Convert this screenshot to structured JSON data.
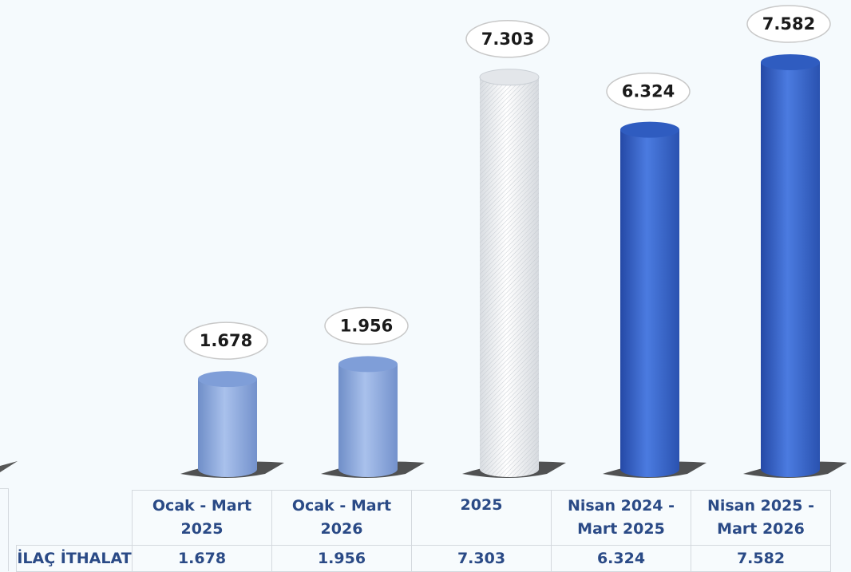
{
  "chart_data": {
    "type": "bar",
    "categories": [
      "Ocak - Mart 2025",
      "Ocak - Mart 2026",
      "2025",
      "Nisan 2024 - Mart 2025",
      "Nisan 2025 - Mart 2026"
    ],
    "category_lines": [
      [
        "Ocak - Mart",
        "2025"
      ],
      [
        "Ocak - Mart",
        "2026"
      ],
      [
        "2025",
        ""
      ],
      [
        "Nisan 2024 -",
        "Mart 2025"
      ],
      [
        "Nisan 2025 -",
        "Mart 2026"
      ]
    ],
    "series": [
      {
        "name": "İLAÇ İTHALAT",
        "values": [
          1.678,
          1.956,
          7.303,
          6.324,
          7.582
        ]
      }
    ],
    "data_labels": [
      "1.678",
      "1.956",
      "7.303",
      "6.324",
      "7.582"
    ],
    "bar_styles": [
      "light-blue",
      "light-blue",
      "white-hatched",
      "dark-blue",
      "dark-blue"
    ],
    "colors": {
      "light_blue": "#8eabdf",
      "dark_blue": "#3d6bd0",
      "white": "#f2f4f6",
      "table_text": "#2a4a86"
    },
    "legend": "none",
    "grid": false
  }
}
